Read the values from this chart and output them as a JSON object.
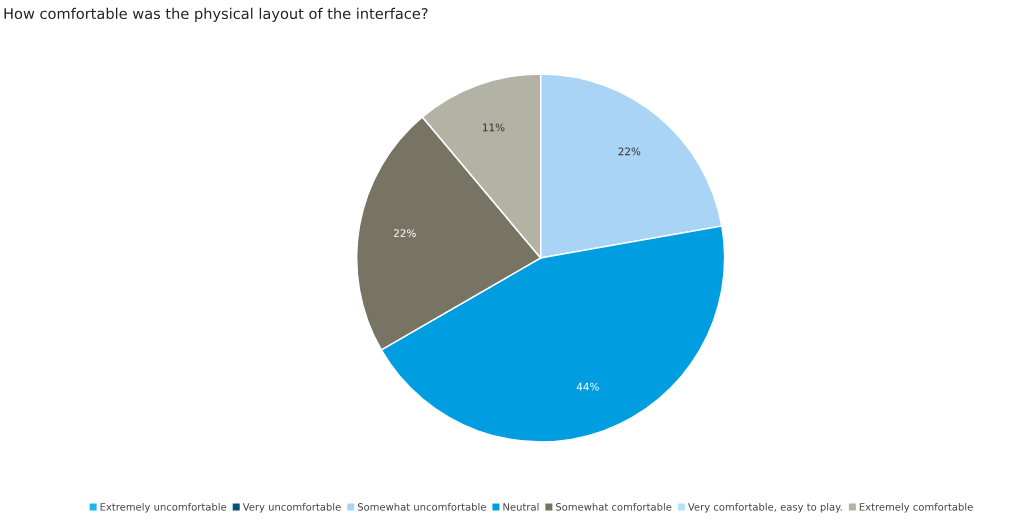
{
  "chart_data": {
    "type": "pie",
    "title": "How comfortable was the physical layout of the interface?",
    "categories": [
      "Extremely uncomfortable",
      "Very uncomfortable",
      "Somewhat uncomfortable",
      "Neutral",
      "Somewhat comfortable",
      "Very comfortable, easy to play.",
      "Extremely comfortable"
    ],
    "values": [
      0,
      0,
      22,
      44,
      22,
      0,
      11
    ],
    "colors": [
      "#1ab8ea",
      "#0a4f80",
      "#a9d4f5",
      "#009ee0",
      "#777463",
      "#b5e3fb",
      "#b3b3a5"
    ],
    "value_labels": [
      null,
      null,
      "22%",
      "44%",
      "22%",
      null,
      "11%"
    ],
    "legend": "bottom"
  }
}
